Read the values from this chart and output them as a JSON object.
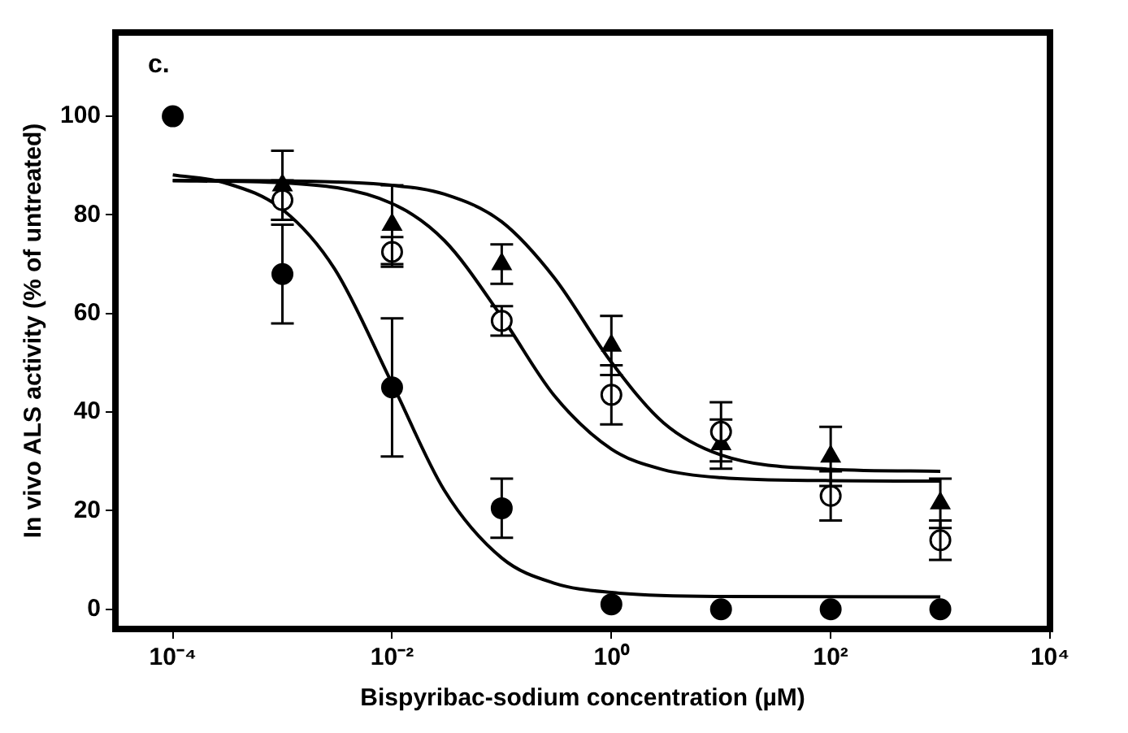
{
  "chart_data": {
    "type": "scatter",
    "xlabel": "Bispyribac-sodium concentration (µM)",
    "ylabel": "In vivo ALS activity (% of untreated)",
    "annotations": [
      "c."
    ],
    "log": "x",
    "grid": false,
    "legend": false,
    "xlim": [
      3e-05,
      10000
    ],
    "xticks": [
      {
        "value": 0.0001,
        "label": "10⁻⁴"
      },
      {
        "value": 0.01,
        "label": "10⁻²"
      },
      {
        "value": 1,
        "label": "10⁰"
      },
      {
        "value": 100,
        "label": "10²"
      },
      {
        "value": 10000,
        "label": "10⁴"
      }
    ],
    "ylim": [
      -4,
      117
    ],
    "yticks": [
      0,
      20,
      40,
      60,
      80,
      100
    ],
    "x": [
      0.0001,
      0.001,
      0.01,
      0.1,
      1,
      10,
      100,
      1000
    ],
    "series": [
      {
        "type": "scatter",
        "marker": "circle",
        "color": "#000000",
        "values": [
          100,
          68,
          45,
          20.5,
          1,
          0,
          0,
          0
        ],
        "errors": [
          null,
          10,
          14,
          6,
          null,
          null,
          null,
          null
        ]
      },
      {
        "type": "scatter",
        "marker": "circle",
        "color": "#ffffff",
        "values": [
          null,
          83,
          72.5,
          58.5,
          43.5,
          36,
          23,
          14
        ],
        "errors": [
          null,
          4,
          3,
          3,
          6,
          6,
          5,
          4
        ]
      },
      {
        "type": "scatter",
        "marker": "triangle",
        "color": "#000000",
        "values": [
          null,
          86,
          78,
          70,
          53.5,
          33.5,
          31,
          21.5
        ],
        "errors": [
          null,
          7,
          8,
          4,
          6,
          5,
          6,
          5
        ]
      },
      {
        "type": "line",
        "color": "#000000",
        "x": [
          0.0001,
          0.0003,
          0.001,
          0.003,
          0.01,
          0.03,
          0.1,
          0.3,
          1,
          10,
          1000
        ],
        "values": [
          88.1,
          86.5,
          81.1,
          69,
          45.8,
          24.1,
          10.4,
          5.3,
          3.4,
          2.6,
          2.5
        ]
      },
      {
        "type": "line",
        "color": "#000000",
        "x": [
          0.0001,
          0.001,
          0.01,
          0.03,
          0.1,
          0.3,
          1,
          3,
          10,
          100,
          1000
        ],
        "values": [
          86.9,
          86.5,
          82.3,
          74.8,
          59.3,
          43.4,
          32.5,
          28.3,
          26.7,
          26.1,
          26
        ]
      },
      {
        "type": "line",
        "color": "#000000",
        "x": [
          0.0001,
          0.001,
          0.01,
          0.03,
          0.1,
          0.3,
          1,
          3,
          10,
          100,
          1000
        ],
        "values": [
          87,
          86.9,
          86,
          84.2,
          78.6,
          67.3,
          50.1,
          37.8,
          31.3,
          28.4,
          28
        ]
      }
    ]
  }
}
